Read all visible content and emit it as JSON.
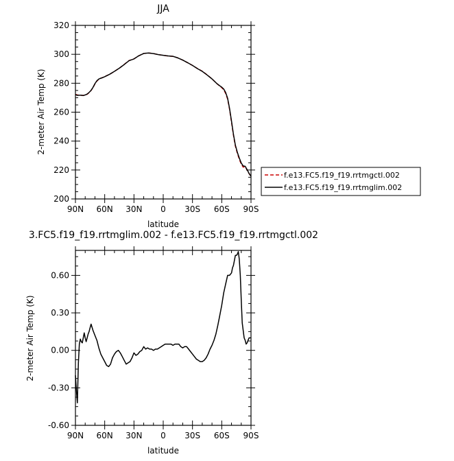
{
  "chart_data": [
    {
      "type": "line",
      "title": "JJA",
      "xlabel": "latitude",
      "ylabel": "2-meter Air Temp (K)",
      "xlim": [
        90,
        -90
      ],
      "ylim": [
        200,
        320
      ],
      "x_ticks": [
        90,
        60,
        30,
        0,
        -30,
        -60,
        -90
      ],
      "x_tick_labels": [
        "90N",
        "60N",
        "30N",
        "0",
        "30S",
        "60S",
        "90S"
      ],
      "y_ticks": [
        200,
        220,
        240,
        260,
        280,
        300,
        320
      ],
      "y_tick_labels": [
        "200",
        "220",
        "240",
        "260",
        "280",
        "300",
        "320"
      ],
      "legend_position": "right-middle",
      "series": [
        {
          "name": "f.e13.FC5.f19_f19.rrtmgctl.002",
          "color": "#cc0000",
          "dash": "dashed",
          "x": [
            90,
            88,
            86,
            84,
            82,
            80,
            78,
            76,
            74,
            72,
            70,
            68,
            66,
            64,
            62,
            60,
            55,
            50,
            45,
            40,
            35,
            30,
            25,
            20,
            15,
            10,
            5,
            0,
            -5,
            -10,
            -15,
            -20,
            -25,
            -30,
            -35,
            -40,
            -45,
            -50,
            -55,
            -58,
            -60,
            -62,
            -64,
            -66,
            -68,
            -70,
            -72,
            -74,
            -76,
            -78,
            -80,
            -82,
            -84,
            -86,
            -88,
            -90
          ],
          "y": [
            272.3,
            271.9,
            271.7,
            271.6,
            271.6,
            271.8,
            272.4,
            273.5,
            275.0,
            277.0,
            279.5,
            281.5,
            282.8,
            283.5,
            284.0,
            284.6,
            286.2,
            288.2,
            290.4,
            293.0,
            295.7,
            296.8,
            299.0,
            300.6,
            300.9,
            300.5,
            299.8,
            299.3,
            298.8,
            298.6,
            297.5,
            296.0,
            294.2,
            292.3,
            290.2,
            288.3,
            285.8,
            283.0,
            279.8,
            278.0,
            277.0,
            275.5,
            273.0,
            269.0,
            262.0,
            253.0,
            244.0,
            236.5,
            231.5,
            227.5,
            224.0,
            222.0,
            222.3,
            220.0,
            217.5,
            215.6
          ]
        },
        {
          "name": "f.e13.FC5.f19_f19.rrtmglim.002",
          "color": "#000000",
          "dash": "solid",
          "x": [
            90,
            88,
            86,
            84,
            82,
            80,
            78,
            76,
            74,
            72,
            70,
            68,
            66,
            64,
            62,
            60,
            55,
            50,
            45,
            40,
            35,
            30,
            25,
            20,
            15,
            10,
            5,
            0,
            -5,
            -10,
            -15,
            -20,
            -25,
            -30,
            -35,
            -40,
            -45,
            -50,
            -55,
            -58,
            -60,
            -62,
            -64,
            -66,
            -68,
            -70,
            -72,
            -74,
            -76,
            -78,
            -80,
            -82,
            -84,
            -86,
            -88,
            -90
          ],
          "y": [
            272.1,
            271.6,
            271.7,
            271.7,
            271.5,
            271.9,
            272.5,
            273.6,
            275.1,
            277.1,
            279.7,
            281.7,
            282.9,
            283.5,
            283.9,
            284.5,
            286.2,
            288.2,
            290.4,
            292.9,
            295.6,
            296.8,
            299.0,
            300.6,
            300.9,
            300.5,
            299.8,
            299.3,
            298.9,
            298.6,
            297.5,
            296.0,
            294.2,
            292.3,
            290.1,
            288.2,
            285.7,
            283.0,
            279.8,
            278.2,
            277.3,
            276.0,
            273.6,
            269.6,
            262.6,
            253.7,
            244.7,
            237.2,
            232.2,
            228.3,
            224.8,
            222.8,
            222.6,
            220.3,
            217.6,
            215.7
          ]
        }
      ]
    },
    {
      "type": "line",
      "title": "3.FC5.f19_f19.rrtmglim.002 - f.e13.FC5.f19_f19.rrtmgctl.002",
      "xlabel": "latitude",
      "ylabel": "2-meter Air Temp (K)",
      "xlim": [
        90,
        -90
      ],
      "ylim": [
        -0.6,
        0.8
      ],
      "x_ticks": [
        90,
        60,
        30,
        0,
        -30,
        -60,
        -90
      ],
      "x_tick_labels": [
        "90N",
        "60N",
        "30N",
        "0",
        "30S",
        "60S",
        "90S"
      ],
      "y_ticks": [
        -0.6,
        -0.3,
        0.0,
        0.3,
        0.6
      ],
      "y_tick_labels": [
        "-0.60",
        "-0.30",
        "0.00",
        "0.30",
        "0.60"
      ],
      "series": [
        {
          "color": "#000000",
          "dash": "solid",
          "x": [
            90,
            89,
            88,
            87,
            86,
            85,
            84,
            83,
            82,
            81,
            80,
            79,
            78,
            77,
            76,
            75,
            74,
            72,
            70,
            68,
            66,
            64,
            62,
            60,
            58,
            56,
            54,
            52,
            50,
            48,
            46,
            44,
            42,
            40,
            38,
            36,
            34,
            32,
            30,
            28,
            26,
            24,
            22,
            20,
            18,
            16,
            14,
            12,
            10,
            8,
            6,
            4,
            2,
            0,
            -2,
            -4,
            -6,
            -8,
            -10,
            -12,
            -14,
            -16,
            -18,
            -20,
            -22,
            -24,
            -26,
            -28,
            -30,
            -32,
            -34,
            -36,
            -38,
            -40,
            -42,
            -44,
            -46,
            -48,
            -50,
            -52,
            -54,
            -56,
            -58,
            -60,
            -62,
            -64,
            -66,
            -68,
            -70,
            -71,
            -72,
            -73,
            -74,
            -75,
            -76,
            -77,
            -78,
            -79,
            -80,
            -81,
            -82,
            -83,
            -84,
            -85,
            -86,
            -87,
            -88,
            -89,
            -90
          ],
          "y": [
            -0.2,
            -0.32,
            -0.42,
            -0.1,
            0.05,
            0.09,
            0.07,
            0.06,
            0.1,
            0.14,
            0.1,
            0.07,
            0.1,
            0.13,
            0.15,
            0.18,
            0.21,
            0.16,
            0.12,
            0.08,
            0.02,
            -0.03,
            -0.06,
            -0.09,
            -0.12,
            -0.13,
            -0.11,
            -0.06,
            -0.03,
            -0.01,
            0.0,
            -0.02,
            -0.05,
            -0.08,
            -0.11,
            -0.1,
            -0.09,
            -0.06,
            -0.02,
            -0.04,
            -0.03,
            -0.01,
            0.0,
            0.03,
            0.01,
            0.02,
            0.01,
            0.01,
            0.0,
            0.01,
            0.01,
            0.02,
            0.03,
            0.04,
            0.05,
            0.05,
            0.05,
            0.05,
            0.04,
            0.05,
            0.05,
            0.05,
            0.03,
            0.02,
            0.03,
            0.03,
            0.01,
            -0.01,
            -0.03,
            -0.05,
            -0.07,
            -0.08,
            -0.09,
            -0.09,
            -0.08,
            -0.06,
            -0.03,
            0.01,
            0.04,
            0.08,
            0.13,
            0.2,
            0.28,
            0.36,
            0.46,
            0.53,
            0.6,
            0.6,
            0.62,
            0.66,
            0.68,
            0.72,
            0.76,
            0.76,
            0.77,
            0.79,
            0.73,
            0.6,
            0.4,
            0.22,
            0.16,
            0.1,
            0.08,
            0.05,
            0.06,
            0.08,
            0.1,
            0.1,
            0.1
          ]
        }
      ]
    }
  ]
}
